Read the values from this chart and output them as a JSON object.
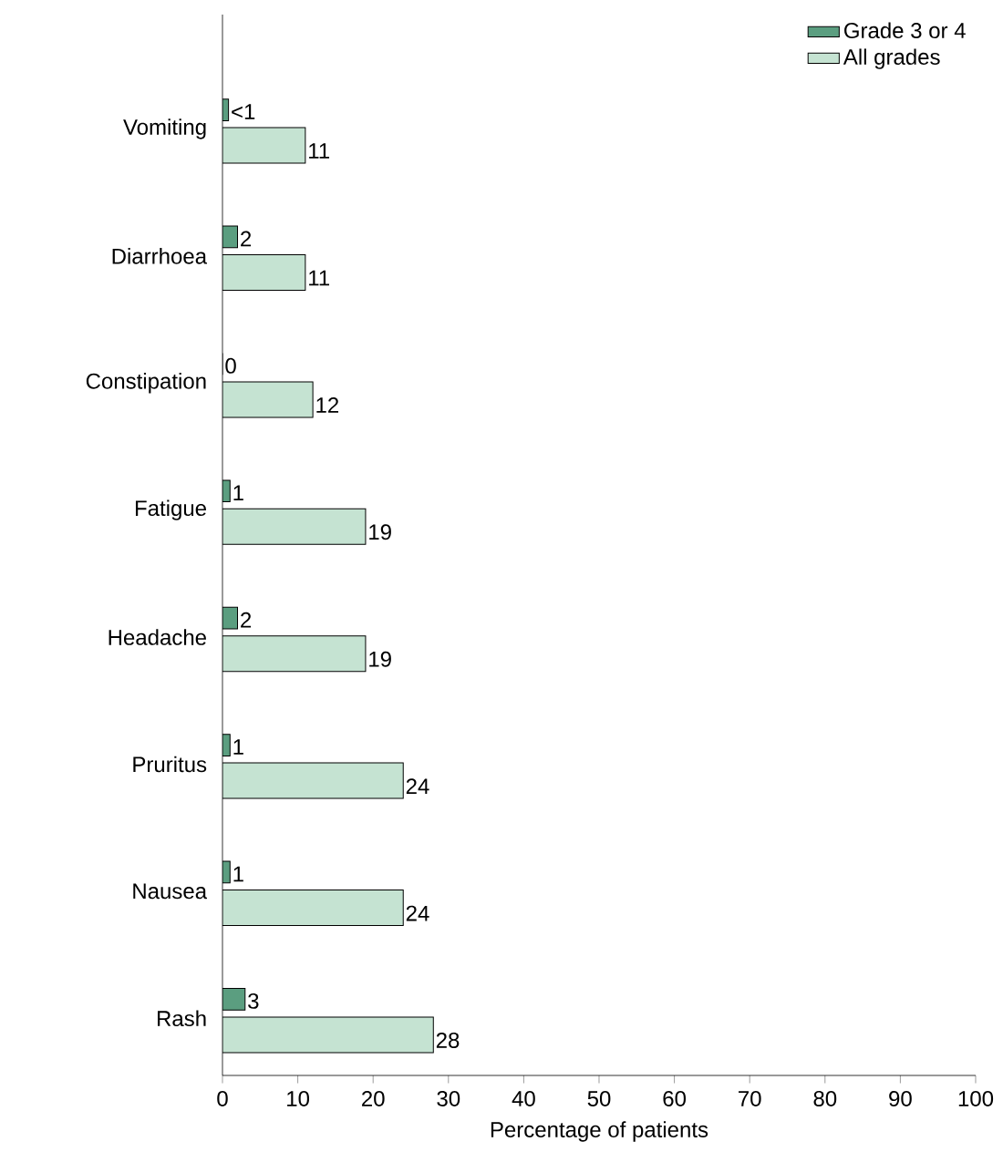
{
  "chart_data": {
    "type": "bar",
    "orientation": "horizontal",
    "xlabel": "Percentage of patients",
    "categories": [
      "Vomiting",
      "Diarrhoea",
      "Constipation",
      "Fatigue",
      "Headache",
      "Pruritus",
      "Nausea",
      "Rash"
    ],
    "series": [
      {
        "name": "Grade 3 or 4",
        "color": "#5b9e80",
        "values": [
          0.8,
          2,
          0,
          1,
          2,
          1,
          1,
          3
        ],
        "value_labels": [
          "<1",
          "2",
          "0",
          "1",
          "2",
          "1",
          "1",
          "3"
        ]
      },
      {
        "name": "All grades",
        "color": "#c5e3d2",
        "values": [
          11,
          11,
          12,
          19,
          19,
          24,
          24,
          28
        ],
        "value_labels": [
          "11",
          "11",
          "12",
          "19",
          "19",
          "24",
          "24",
          "28"
        ]
      }
    ],
    "xlim": [
      0,
      100
    ],
    "xticks": [
      0,
      10,
      20,
      30,
      40,
      50,
      60,
      70,
      80,
      90,
      100
    ],
    "legend": "top right"
  }
}
